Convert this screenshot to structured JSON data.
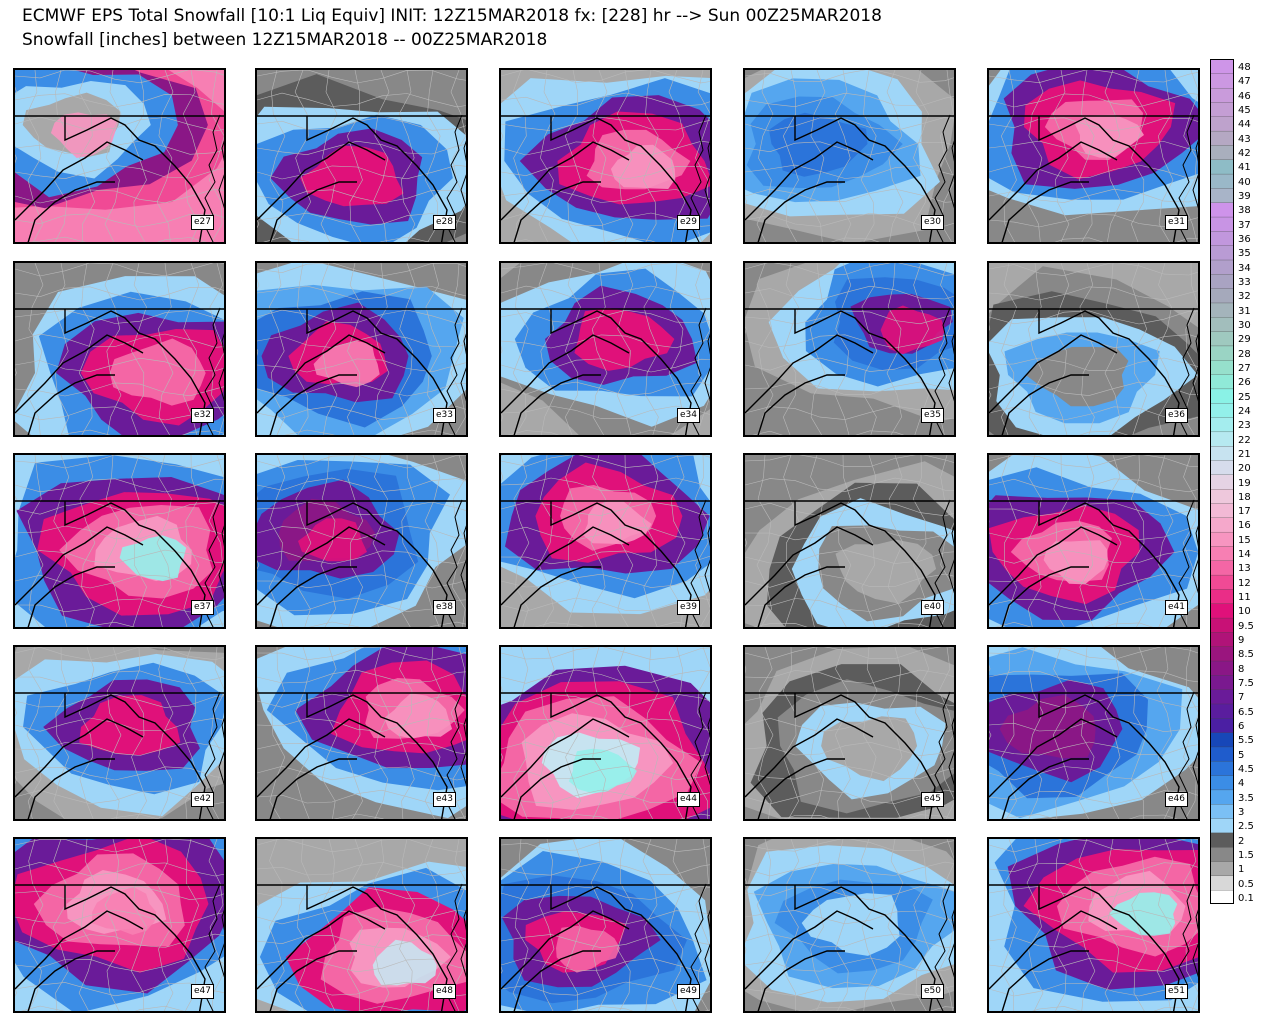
{
  "title_line1": "ECMWF EPS Total Snowfall [10:1 Liq Equiv] INIT: 12Z15MAR2018 fx: [228] hr --> Sun 00Z25MAR2018",
  "title_line2": "Snowfall [inches] between 12Z15MAR2018 -- 00Z25MAR2018",
  "legend": {
    "levels": [
      "0.1",
      "0.5",
      "1",
      "1.5",
      "2",
      "2.5",
      "3",
      "3.5",
      "4",
      "4.5",
      "5",
      "5.5",
      "6",
      "6.5",
      "7",
      "7.5",
      "8",
      "8.5",
      "9",
      "9.5",
      "10",
      "11",
      "12",
      "13",
      "14",
      "15",
      "16",
      "17",
      "18",
      "19",
      "20",
      "21",
      "22",
      "23",
      "24",
      "25",
      "26",
      "27",
      "28",
      "29",
      "30",
      "31",
      "32",
      "33",
      "34",
      "35",
      "36",
      "37",
      "38",
      "39",
      "40",
      "41",
      "42",
      "43",
      "44",
      "45",
      "46",
      "47",
      "48"
    ],
    "colors": [
      "#ffffff",
      "#d8d8d8",
      "#a8a8a8",
      "#888888",
      "#5c5c5c",
      "#9fd6f8",
      "#7bc0f5",
      "#55a6ef",
      "#3b8de6",
      "#2b74da",
      "#1f5ccc",
      "#1747b8",
      "#4b1fa3",
      "#5a1d9e",
      "#6a1b99",
      "#7a198f",
      "#8a1786",
      "#9a157e",
      "#b01378",
      "#c81176",
      "#e0117a",
      "#ea2d87",
      "#f04a95",
      "#f466a5",
      "#f77fb3",
      "#f795c0",
      "#f5a8cb",
      "#f2b9d5",
      "#eec8dc",
      "#e5d3e4",
      "#d6dcec",
      "#c7e3f0",
      "#b6e9f0",
      "#a4edee",
      "#93f0ea",
      "#8af2e6",
      "#90ead8",
      "#96e0cc",
      "#9ad4c4",
      "#9fc9bf",
      "#a2bebc",
      "#a4b4bb",
      "#a5a9bb",
      "#a9a3c2",
      "#b19fcb",
      "#b99bd4",
      "#c197dd",
      "#c894e4",
      "#ce93ea",
      "#a8b4c8",
      "#9ab8c8",
      "#8ebcc6",
      "#a9afbd",
      "#b5a8c3",
      "#bea2cc",
      "#c49ed4",
      "#c99bdb",
      "#cc98e2",
      "#ce95e8"
    ]
  },
  "members": [
    {
      "id": "e27",
      "base": "#f77fb3",
      "bands": [
        "#f04a95",
        "#8a1786",
        "#3b8de6",
        "#9fd6f8",
        "#a8a8a8"
      ],
      "light": "#f795c0"
    },
    {
      "id": "e28",
      "base": "#888888",
      "bands": [
        "#5c5c5c",
        "#9fd6f8",
        "#3b8de6",
        "#6a1b99",
        "#e0117a"
      ],
      "light": null
    },
    {
      "id": "e29",
      "base": "#a8a8a8",
      "bands": [
        "#9fd6f8",
        "#3b8de6",
        "#6a1b99",
        "#e0117a",
        "#f466a5"
      ],
      "light": "#f795c0"
    },
    {
      "id": "e30",
      "base": "#888888",
      "bands": [
        "#a8a8a8",
        "#9fd6f8",
        "#55a6ef",
        "#3b8de6",
        "#2b74da"
      ],
      "light": null
    },
    {
      "id": "e31",
      "base": "#888888",
      "bands": [
        "#9fd6f8",
        "#3b8de6",
        "#6a1b99",
        "#e0117a",
        "#f466a5"
      ],
      "light": "#f795c0"
    },
    {
      "id": "e32",
      "base": "#888888",
      "bands": [
        "#9fd6f8",
        "#3b8de6",
        "#6a1b99",
        "#e0117a",
        "#f466a5"
      ],
      "light": null
    },
    {
      "id": "e33",
      "base": "#888888",
      "bands": [
        "#9fd6f8",
        "#55a6ef",
        "#2b74da",
        "#6a1b99",
        "#e0117a"
      ],
      "light": "#f77fb3"
    },
    {
      "id": "e34",
      "base": "#a8a8a8",
      "bands": [
        "#888888",
        "#9fd6f8",
        "#3b8de6",
        "#6a1b99",
        "#e0117a"
      ],
      "light": null
    },
    {
      "id": "e35",
      "base": "#888888",
      "bands": [
        "#a8a8a8",
        "#9fd6f8",
        "#3b8de6",
        "#2b74da",
        "#6a1b99"
      ],
      "light": "#e0117a"
    },
    {
      "id": "e36",
      "base": "#a8a8a8",
      "bands": [
        "#888888",
        "#5c5c5c",
        "#9fd6f8",
        "#55a6ef",
        "#888888"
      ],
      "light": null
    },
    {
      "id": "e37",
      "base": "#9fd6f8",
      "bands": [
        "#3b8de6",
        "#6a1b99",
        "#e0117a",
        "#f466a5",
        "#f795c0"
      ],
      "light": "#93f0ea"
    },
    {
      "id": "e38",
      "base": "#888888",
      "bands": [
        "#9fd6f8",
        "#3b8de6",
        "#2b74da",
        "#6a1b99",
        "#8a1786"
      ],
      "light": "#e0117a"
    },
    {
      "id": "e39",
      "base": "#a8a8a8",
      "bands": [
        "#9fd6f8",
        "#3b8de6",
        "#6a1b99",
        "#e0117a",
        "#f466a5"
      ],
      "light": "#f795c0"
    },
    {
      "id": "e40",
      "base": "#888888",
      "bands": [
        "#a8a8a8",
        "#5c5c5c",
        "#9fd6f8",
        "#888888",
        "#a8a8a8"
      ],
      "light": null
    },
    {
      "id": "e41",
      "base": "#888888",
      "bands": [
        "#9fd6f8",
        "#3b8de6",
        "#6a1b99",
        "#e0117a",
        "#f466a5"
      ],
      "light": "#f795c0"
    },
    {
      "id": "e42",
      "base": "#888888",
      "bands": [
        "#a8a8a8",
        "#9fd6f8",
        "#3b8de6",
        "#6a1b99",
        "#e0117a"
      ],
      "light": null
    },
    {
      "id": "e43",
      "base": "#888888",
      "bands": [
        "#9fd6f8",
        "#3b8de6",
        "#6a1b99",
        "#e0117a",
        "#f466a5"
      ],
      "light": "#f795c0"
    },
    {
      "id": "e44",
      "base": "#9fd6f8",
      "bands": [
        "#6a1b99",
        "#e0117a",
        "#f466a5",
        "#f795c0",
        "#c7e3f0"
      ],
      "light": "#93f0ea"
    },
    {
      "id": "e45",
      "base": "#888888",
      "bands": [
        "#a8a8a8",
        "#5c5c5c",
        "#888888",
        "#9fd6f8",
        "#a8a8a8"
      ],
      "light": null
    },
    {
      "id": "e46",
      "base": "#888888",
      "bands": [
        "#9fd6f8",
        "#55a6ef",
        "#2b74da",
        "#6a1b99",
        "#8a1786"
      ],
      "light": null
    },
    {
      "id": "e47",
      "base": "#9fd6f8",
      "bands": [
        "#3b8de6",
        "#6a1b99",
        "#e0117a",
        "#f466a5",
        "#f795c0"
      ],
      "light": "#f77fb3"
    },
    {
      "id": "e48",
      "base": "#a8a8a8",
      "bands": [
        "#9fd6f8",
        "#3b8de6",
        "#e0117a",
        "#f466a5",
        "#f795c0"
      ],
      "light": "#c7e3f0"
    },
    {
      "id": "e49",
      "base": "#888888",
      "bands": [
        "#9fd6f8",
        "#3b8de6",
        "#2b74da",
        "#6a1b99",
        "#e0117a"
      ],
      "light": "#f466a5"
    },
    {
      "id": "e50",
      "base": "#888888",
      "bands": [
        "#a8a8a8",
        "#9fd6f8",
        "#55a6ef",
        "#3b8de6",
        "#9fd6f8"
      ],
      "light": null
    },
    {
      "id": "e51",
      "base": "#9fd6f8",
      "bands": [
        "#3b8de6",
        "#6a1b99",
        "#e0117a",
        "#f466a5",
        "#f795c0"
      ],
      "light": "#93f0ea"
    }
  ]
}
